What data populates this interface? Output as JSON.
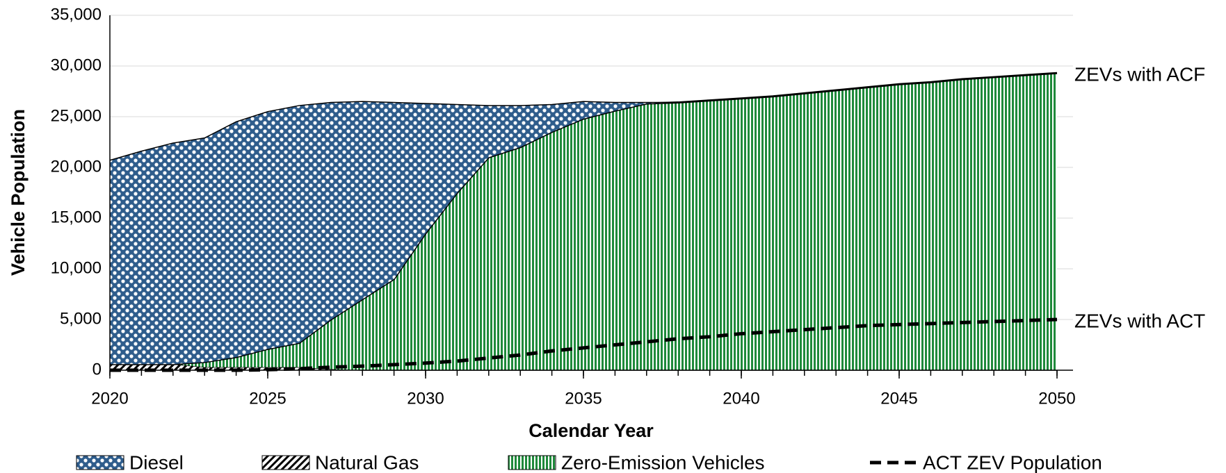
{
  "chart_data": {
    "type": "stacked_area",
    "x_label": "Calendar Year",
    "y_label": "Vehicle Population",
    "x": [
      2020,
      2021,
      2022,
      2023,
      2024,
      2025,
      2026,
      2027,
      2028,
      2029,
      2030,
      2031,
      2032,
      2033,
      2034,
      2035,
      2036,
      2037,
      2038,
      2039,
      2040,
      2041,
      2042,
      2043,
      2044,
      2045,
      2046,
      2047,
      2048,
      2049,
      2050
    ],
    "xlim": [
      2020,
      2050
    ],
    "xticks": [
      2020,
      2025,
      2030,
      2035,
      2040,
      2045,
      2050
    ],
    "ylim": [
      0,
      35000
    ],
    "yticks": [
      0,
      {
        "value": 5000,
        "label": "5,000"
      },
      {
        "value": 10000,
        "label": "10,000"
      },
      {
        "value": 15000,
        "label": "15,000"
      },
      {
        "value": 20000,
        "label": "20,000"
      },
      {
        "value": 25000,
        "label": "25,000"
      },
      {
        "value": 30000,
        "label": "30,000"
      },
      {
        "value": 35000,
        "label": "35,000"
      }
    ],
    "grid": true,
    "series": [
      {
        "name": "Diesel",
        "color": "#2f5d8c",
        "pattern": "dots",
        "values": [
          20100,
          21000,
          21800,
          22100,
          23200,
          23400,
          23400,
          21400,
          19500,
          17400,
          12800,
          8700,
          5100,
          4100,
          2700,
          1700,
          800,
          100,
          0,
          0,
          0,
          0,
          0,
          0,
          0,
          0,
          0,
          0,
          0,
          0,
          0
        ]
      },
      {
        "name": "Natural Gas",
        "color": "#000000",
        "pattern": "diagonal",
        "values": [
          600,
          600,
          600,
          300,
          300,
          300,
          300,
          100,
          0,
          0,
          0,
          0,
          0,
          0,
          0,
          0,
          0,
          0,
          0,
          0,
          0,
          0,
          0,
          0,
          0,
          0,
          0,
          0,
          0,
          0,
          0
        ]
      },
      {
        "name": "Zero-Emission Vehicles",
        "color": "#1f8a3b",
        "pattern": "vertical",
        "values": [
          0,
          0,
          0,
          500,
          1000,
          1800,
          2400,
          4900,
          7000,
          9000,
          13500,
          17500,
          21000,
          22000,
          23500,
          24800,
          25600,
          26300,
          26400,
          26600,
          26800,
          27000,
          27300,
          27600,
          27900,
          28200,
          28400,
          28700,
          28900,
          29100,
          29300
        ]
      },
      {
        "name": "ACT ZEV Population",
        "color": "#000000",
        "kind": "dashed_line",
        "values": [
          0,
          0,
          0,
          0,
          0,
          50,
          150,
          300,
          400,
          550,
          700,
          900,
          1200,
          1500,
          1900,
          2200,
          2500,
          2800,
          3100,
          3300,
          3600,
          3800,
          4000,
          4200,
          4400,
          4500,
          4600,
          4700,
          4800,
          4900,
          5000
        ]
      }
    ],
    "annotations": [
      "ZEVs with ACF",
      "ZEVs with ACT"
    ]
  }
}
